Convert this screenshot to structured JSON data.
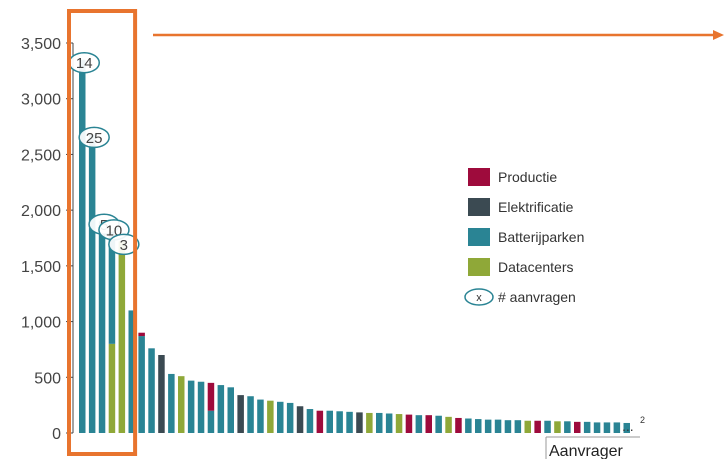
{
  "chart_data": {
    "type": "bar",
    "stacked": true,
    "xlabel": "Aanvrager",
    "ylabel": "",
    "ylim": [
      0,
      3500
    ],
    "yticks": [
      0,
      500,
      1000,
      1500,
      2000,
      2500,
      3000,
      3500
    ],
    "ytick_labels": [
      "0",
      "500",
      "1,000",
      "1,500",
      "2,000",
      "2,500",
      "3,000",
      "3,500"
    ],
    "ellipsis_label": "...",
    "footnote_mark": "2",
    "grid": false,
    "legend_position": "right",
    "series_colors": {
      "Productie": "#9e0b3c",
      "Elektrificatie": "#3b4a52",
      "Batterijparken": "#2a8494",
      "Datacenters": "#8fa838"
    },
    "legend": [
      {
        "name": "Productie",
        "color": "#9e0b3c",
        "kind": "swatch"
      },
      {
        "name": "Elektrificatie",
        "color": "#3b4a52",
        "kind": "swatch"
      },
      {
        "name": "Batterijparken",
        "color": "#2a8494",
        "kind": "swatch"
      },
      {
        "name": "Datacenters",
        "color": "#8fa838",
        "kind": "swatch"
      },
      {
        "name": "# aanvragen",
        "symbol": "x",
        "kind": "bubble"
      }
    ],
    "bars": [
      {
        "segments": [
          {
            "series": "Batterijparken",
            "value": 3350
          }
        ],
        "requests": "14"
      },
      {
        "segments": [
          {
            "series": "Batterijparken",
            "value": 2680
          }
        ],
        "requests": "25"
      },
      {
        "segments": [
          {
            "series": "Batterijparken",
            "value": 1900
          }
        ],
        "requests": "5"
      },
      {
        "segments": [
          {
            "series": "Datacenters",
            "value": 800
          },
          {
            "series": "Batterijparken",
            "value": 1050
          }
        ],
        "requests": "10"
      },
      {
        "segments": [
          {
            "series": "Datacenters",
            "value": 1720
          }
        ],
        "requests": "3"
      },
      {
        "segments": [
          {
            "series": "Batterijparken",
            "value": 1100
          }
        ]
      },
      {
        "segments": [
          {
            "series": "Batterijparken",
            "value": 870
          },
          {
            "series": "Productie",
            "value": 30
          }
        ]
      },
      {
        "segments": [
          {
            "series": "Batterijparken",
            "value": 760
          }
        ]
      },
      {
        "segments": [
          {
            "series": "Elektrificatie",
            "value": 700
          }
        ]
      },
      {
        "segments": [
          {
            "series": "Batterijparken",
            "value": 530
          }
        ]
      },
      {
        "segments": [
          {
            "series": "Datacenters",
            "value": 510
          }
        ]
      },
      {
        "segments": [
          {
            "series": "Batterijparken",
            "value": 470
          }
        ]
      },
      {
        "segments": [
          {
            "series": "Batterijparken",
            "value": 460
          }
        ]
      },
      {
        "segments": [
          {
            "series": "Batterijparken",
            "value": 200
          },
          {
            "series": "Productie",
            "value": 250
          }
        ]
      },
      {
        "segments": [
          {
            "series": "Batterijparken",
            "value": 430
          }
        ]
      },
      {
        "segments": [
          {
            "series": "Batterijparken",
            "value": 410
          }
        ]
      },
      {
        "segments": [
          {
            "series": "Elektrificatie",
            "value": 340
          }
        ]
      },
      {
        "segments": [
          {
            "series": "Batterijparken",
            "value": 330
          }
        ]
      },
      {
        "segments": [
          {
            "series": "Batterijparken",
            "value": 300
          }
        ]
      },
      {
        "segments": [
          {
            "series": "Datacenters",
            "value": 290
          }
        ]
      },
      {
        "segments": [
          {
            "series": "Batterijparken",
            "value": 280
          }
        ]
      },
      {
        "segments": [
          {
            "series": "Batterijparken",
            "value": 270
          }
        ]
      },
      {
        "segments": [
          {
            "series": "Elektrificatie",
            "value": 240
          }
        ]
      },
      {
        "segments": [
          {
            "series": "Batterijparken",
            "value": 215
          }
        ]
      },
      {
        "segments": [
          {
            "series": "Productie",
            "value": 200
          }
        ]
      },
      {
        "segments": [
          {
            "series": "Batterijparken",
            "value": 200
          }
        ]
      },
      {
        "segments": [
          {
            "series": "Batterijparken",
            "value": 195
          }
        ]
      },
      {
        "segments": [
          {
            "series": "Batterijparken",
            "value": 190
          }
        ]
      },
      {
        "segments": [
          {
            "series": "Elektrificatie",
            "value": 185
          }
        ]
      },
      {
        "segments": [
          {
            "series": "Datacenters",
            "value": 180
          }
        ]
      },
      {
        "segments": [
          {
            "series": "Batterijparken",
            "value": 180
          }
        ]
      },
      {
        "segments": [
          {
            "series": "Batterijparken",
            "value": 175
          }
        ]
      },
      {
        "segments": [
          {
            "series": "Datacenters",
            "value": 170
          }
        ]
      },
      {
        "segments": [
          {
            "series": "Productie",
            "value": 165
          }
        ]
      },
      {
        "segments": [
          {
            "series": "Batterijparken",
            "value": 160
          }
        ]
      },
      {
        "segments": [
          {
            "series": "Productie",
            "value": 160
          }
        ]
      },
      {
        "segments": [
          {
            "series": "Batterijparken",
            "value": 155
          }
        ]
      },
      {
        "segments": [
          {
            "series": "Datacenters",
            "value": 145
          }
        ]
      },
      {
        "segments": [
          {
            "series": "Productie",
            "value": 135
          }
        ]
      },
      {
        "segments": [
          {
            "series": "Batterijparken",
            "value": 130
          }
        ]
      },
      {
        "segments": [
          {
            "series": "Batterijparken",
            "value": 125
          }
        ]
      },
      {
        "segments": [
          {
            "series": "Batterijparken",
            "value": 120
          }
        ]
      },
      {
        "segments": [
          {
            "series": "Batterijparken",
            "value": 120
          }
        ]
      },
      {
        "segments": [
          {
            "series": "Batterijparken",
            "value": 115
          }
        ]
      },
      {
        "segments": [
          {
            "series": "Batterijparken",
            "value": 115
          }
        ]
      },
      {
        "segments": [
          {
            "series": "Datacenters",
            "value": 110
          }
        ]
      },
      {
        "segments": [
          {
            "series": "Productie",
            "value": 110
          }
        ]
      },
      {
        "segments": [
          {
            "series": "Batterijparken",
            "value": 110
          }
        ]
      },
      {
        "segments": [
          {
            "series": "Datacenters",
            "value": 105
          }
        ]
      },
      {
        "segments": [
          {
            "series": "Batterijparken",
            "value": 105
          }
        ]
      },
      {
        "segments": [
          {
            "series": "Productie",
            "value": 100
          }
        ]
      },
      {
        "segments": [
          {
            "series": "Batterijparken",
            "value": 100
          }
        ]
      },
      {
        "segments": [
          {
            "series": "Batterijparken",
            "value": 95
          }
        ]
      },
      {
        "segments": [
          {
            "series": "Batterijparken",
            "value": 95
          }
        ]
      },
      {
        "segments": [
          {
            "series": "Batterijparken",
            "value": 95
          }
        ]
      },
      {
        "segments": [
          {
            "series": "Batterijparken",
            "value": 90
          }
        ]
      }
    ],
    "highlight": {
      "color": "#e8742e",
      "first_bar": 0,
      "last_bar": 4
    }
  }
}
